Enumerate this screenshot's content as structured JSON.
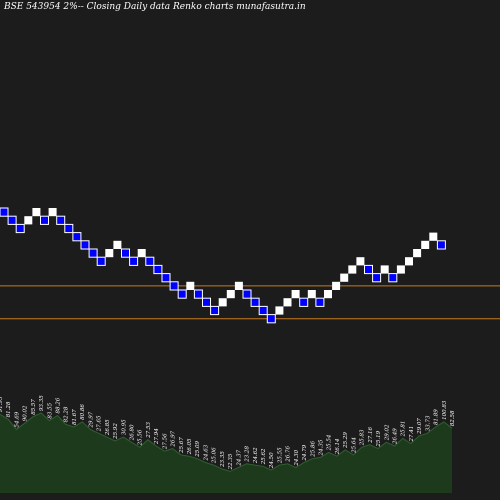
{
  "chart_data": {
    "type": "renko",
    "title": "BSE 543954  2%-- Closing Daily data  Renko  charts munafasutra.in",
    "colors": {
      "background": "#1c1c1c",
      "up_brick": "#ffffff",
      "down_brick": "#0000ff",
      "down_brick_border": "#ffffff",
      "reference_line": "#c87a1e",
      "volume_fill": "#1d3a1d",
      "volume_line": "#2f5f2f",
      "text": "#ffffff"
    },
    "reference_lines": [
      9,
      13
    ],
    "bricks": [
      {
        "dir": "down",
        "level": 0
      },
      {
        "dir": "down",
        "level": 1
      },
      {
        "dir": "down",
        "level": 2
      },
      {
        "dir": "up",
        "level": 1
      },
      {
        "dir": "up",
        "level": 0
      },
      {
        "dir": "down",
        "level": 1
      },
      {
        "dir": "up",
        "level": 0
      },
      {
        "dir": "down",
        "level": 1
      },
      {
        "dir": "down",
        "level": 2
      },
      {
        "dir": "down",
        "level": 3
      },
      {
        "dir": "down",
        "level": 4
      },
      {
        "dir": "down",
        "level": 5
      },
      {
        "dir": "down",
        "level": 6
      },
      {
        "dir": "up",
        "level": 5
      },
      {
        "dir": "up",
        "level": 4
      },
      {
        "dir": "down",
        "level": 5
      },
      {
        "dir": "down",
        "level": 6
      },
      {
        "dir": "up",
        "level": 5
      },
      {
        "dir": "down",
        "level": 6
      },
      {
        "dir": "down",
        "level": 7
      },
      {
        "dir": "down",
        "level": 8
      },
      {
        "dir": "down",
        "level": 9
      },
      {
        "dir": "down",
        "level": 10
      },
      {
        "dir": "up",
        "level": 9
      },
      {
        "dir": "down",
        "level": 10
      },
      {
        "dir": "down",
        "level": 11
      },
      {
        "dir": "down",
        "level": 12
      },
      {
        "dir": "up",
        "level": 11
      },
      {
        "dir": "up",
        "level": 10
      },
      {
        "dir": "up",
        "level": 9
      },
      {
        "dir": "down",
        "level": 10
      },
      {
        "dir": "down",
        "level": 11
      },
      {
        "dir": "down",
        "level": 12
      },
      {
        "dir": "down",
        "level": 13
      },
      {
        "dir": "up",
        "level": 12
      },
      {
        "dir": "up",
        "level": 11
      },
      {
        "dir": "up",
        "level": 10
      },
      {
        "dir": "down",
        "level": 11
      },
      {
        "dir": "up",
        "level": 10
      },
      {
        "dir": "down",
        "level": 11
      },
      {
        "dir": "up",
        "level": 10
      },
      {
        "dir": "up",
        "level": 9
      },
      {
        "dir": "up",
        "level": 8
      },
      {
        "dir": "up",
        "level": 7
      },
      {
        "dir": "up",
        "level": 6
      },
      {
        "dir": "down",
        "level": 7
      },
      {
        "dir": "down",
        "level": 8
      },
      {
        "dir": "up",
        "level": 7
      },
      {
        "dir": "down",
        "level": 8
      },
      {
        "dir": "up",
        "level": 7
      },
      {
        "dir": "up",
        "level": 6
      },
      {
        "dir": "up",
        "level": 5
      },
      {
        "dir": "up",
        "level": 4
      },
      {
        "dir": "up",
        "level": 3
      },
      {
        "dir": "down",
        "level": 4
      }
    ],
    "volume": {
      "values": [
        62,
        58,
        50,
        55,
        60,
        63,
        57,
        61,
        54,
        52,
        56,
        50,
        47,
        44,
        41,
        44,
        40,
        36,
        42,
        37,
        33,
        35,
        30,
        29,
        27,
        24,
        22,
        19,
        17,
        20,
        23,
        22,
        21,
        18,
        22,
        23,
        20,
        24,
        27,
        28,
        32,
        29,
        34,
        30,
        36,
        38,
        35,
        40,
        37,
        43,
        39,
        45,
        47,
        52,
        56,
        51
      ],
      "labels": [
        "91.93",
        "81.28",
        "54.69",
        "90.02",
        "85.57",
        "93.35",
        "83.55",
        "88.26",
        "82.28",
        "81.67",
        "80.86",
        "29.97",
        "27.65",
        "26.85",
        "25.92",
        "30.95",
        "26.80",
        "25.56",
        "27.53",
        "27.94",
        "27.56",
        "26.97",
        "25.67",
        "26.05",
        "25.09",
        "24.63",
        "25.06",
        "23.35",
        "22.35",
        "24.37",
        "23.28",
        "24.62",
        "25.62",
        "24.50",
        "25.55",
        "26.76",
        "24.30",
        "24.79",
        "25.86",
        "24.35",
        "25.54",
        "26.14",
        "25.29",
        "25.64",
        "25.83",
        "27.16",
        "25.19",
        "29.02",
        "26.49",
        "25.81",
        "27.41",
        "29.07",
        "33.73",
        "81.89",
        "100.83",
        "82.58"
      ]
    }
  }
}
